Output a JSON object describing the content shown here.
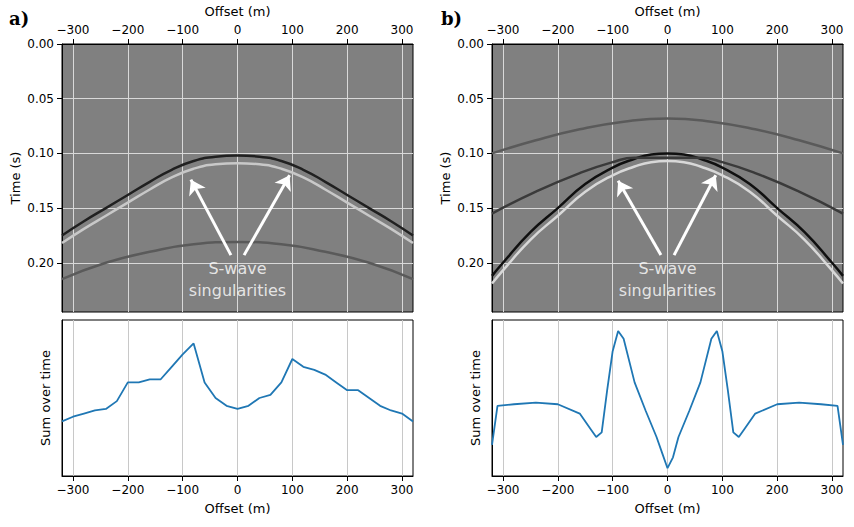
{
  "chart_data": [
    {
      "type": "line",
      "title": "a)",
      "xlabel": "Offset (m)",
      "ylabel": "Time (s)",
      "xlim": [
        -320,
        320
      ],
      "xticks": [
        {
          "value": -300,
          "label": "−300"
        },
        {
          "value": -200,
          "label": "−200"
        },
        {
          "value": -100,
          "label": "−100"
        },
        0,
        100,
        200,
        300
      ],
      "ylim": [
        0.245,
        0
      ],
      "yticks": [
        {
          "value": 0,
          "label": "0.00"
        },
        {
          "value": 0.05,
          "label": "0.05"
        },
        {
          "value": 0.1,
          "label": "0.10"
        },
        {
          "value": 0.15,
          "label": "0.15"
        },
        {
          "value": 0.2,
          "label": "0.20"
        }
      ],
      "grid": true,
      "series": [
        {
          "color": "#202020",
          "x": [
            -320,
            -280,
            -240,
            -200,
            -160,
            -120,
            -80,
            -40,
            0,
            40,
            80,
            120,
            160,
            200,
            240,
            280,
            320
          ],
          "values": [
            0.175,
            0.162,
            0.15,
            0.138,
            0.126,
            0.115,
            0.107,
            0.103,
            0.102,
            0.103,
            0.107,
            0.115,
            0.126,
            0.138,
            0.15,
            0.162,
            0.175
          ]
        },
        {
          "color": "#c8c8c8",
          "x": [
            -320,
            -280,
            -240,
            -200,
            -160,
            -120,
            -80,
            -40,
            0,
            40,
            80,
            120,
            160,
            200,
            240,
            280,
            320
          ],
          "values": [
            0.182,
            0.169,
            0.157,
            0.145,
            0.133,
            0.122,
            0.114,
            0.11,
            0.109,
            0.11,
            0.114,
            0.122,
            0.133,
            0.145,
            0.157,
            0.169,
            0.182
          ]
        },
        {
          "color": "#5a5a5a",
          "x": [
            -320,
            -240,
            -160,
            -80,
            0,
            80,
            160,
            240,
            320
          ],
          "values": [
            0.215,
            0.2,
            0.19,
            0.183,
            0.181,
            0.183,
            0.19,
            0.2,
            0.215
          ]
        }
      ],
      "annotations": [
        {
          "text": "S-wave singularities",
          "x": 0,
          "y": 0.215,
          "arrows": [
            {
              "from": [
                -12,
                0.193
              ],
              "to": [
                -85,
                0.124
              ]
            },
            {
              "from": [
                12,
                0.193
              ],
              "to": [
                95,
                0.12
              ]
            }
          ]
        }
      ]
    },
    {
      "type": "line",
      "xlabel": "Offset (m)",
      "ylabel": "Sum over time",
      "xlim": [
        -320,
        320
      ],
      "xticks": [
        {
          "value": -300,
          "label": "−300"
        },
        {
          "value": -200,
          "label": "−200"
        },
        {
          "value": -100,
          "label": "−100"
        },
        0,
        100,
        200,
        300
      ],
      "ylim": [
        0,
        1
      ],
      "grid": "x",
      "tick_labels": "x",
      "color": "#1f77b4",
      "x": [
        -320,
        -300,
        -280,
        -260,
        -240,
        -220,
        -200,
        -180,
        -160,
        -140,
        -120,
        -100,
        -80,
        -60,
        -40,
        -20,
        0,
        20,
        40,
        60,
        80,
        100,
        120,
        140,
        160,
        180,
        200,
        220,
        240,
        260,
        280,
        300,
        320
      ],
      "values": [
        0.35,
        0.38,
        0.4,
        0.42,
        0.43,
        0.48,
        0.6,
        0.6,
        0.62,
        0.62,
        0.7,
        0.78,
        0.85,
        0.6,
        0.5,
        0.45,
        0.43,
        0.45,
        0.5,
        0.52,
        0.6,
        0.75,
        0.7,
        0.68,
        0.65,
        0.6,
        0.55,
        0.55,
        0.5,
        0.45,
        0.42,
        0.4,
        0.35
      ]
    },
    {
      "type": "line",
      "title": "b)",
      "xlabel": "Offset (m)",
      "ylabel": "Time (s)",
      "xlim": [
        -320,
        320
      ],
      "xticks": [
        {
          "value": -300,
          "label": "−300"
        },
        {
          "value": -200,
          "label": "−200"
        },
        {
          "value": -100,
          "label": "−100"
        },
        0,
        100,
        200,
        300
      ],
      "ylim": [
        0.245,
        0
      ],
      "yticks": [
        {
          "value": 0,
          "label": "0.00"
        },
        {
          "value": 0.05,
          "label": "0.05"
        },
        {
          "value": 0.1,
          "label": "0.10"
        },
        {
          "value": 0.15,
          "label": "0.15"
        },
        {
          "value": 0.2,
          "label": "0.20"
        }
      ],
      "grid": true,
      "series": [
        {
          "color": "#5a5a5a",
          "x": [
            -320,
            -240,
            -160,
            -80,
            0,
            80,
            160,
            240,
            320
          ],
          "values": [
            0.1,
            0.088,
            0.078,
            0.071,
            0.068,
            0.071,
            0.078,
            0.088,
            0.1
          ]
        },
        {
          "color": "#101010",
          "x": [
            -320,
            -300,
            -250,
            -200,
            -150,
            -100,
            -60,
            -30,
            0,
            30,
            60,
            100,
            150,
            200,
            250,
            300,
            320
          ],
          "values": [
            0.212,
            0.2,
            0.172,
            0.15,
            0.128,
            0.113,
            0.105,
            0.101,
            0.1,
            0.101,
            0.105,
            0.113,
            0.128,
            0.15,
            0.172,
            0.2,
            0.212
          ]
        },
        {
          "color": "#d8d8d8",
          "x": [
            -320,
            -300,
            -250,
            -200,
            -150,
            -100,
            -60,
            -30,
            0,
            30,
            60,
            100,
            150,
            200,
            250,
            300,
            320
          ],
          "values": [
            0.219,
            0.207,
            0.179,
            0.157,
            0.135,
            0.12,
            0.112,
            0.108,
            0.107,
            0.108,
            0.112,
            0.12,
            0.135,
            0.157,
            0.179,
            0.207,
            0.219
          ]
        },
        {
          "color": "#3a3a3a",
          "x": [
            -320,
            -240,
            -160,
            -100,
            -60,
            60,
            100,
            160,
            240,
            320
          ],
          "values": [
            0.155,
            0.135,
            0.118,
            0.108,
            0.104,
            0.104,
            0.108,
            0.118,
            0.135,
            0.155
          ]
        }
      ],
      "annotations": [
        {
          "text": "S-wave singularities",
          "x": 0,
          "y": 0.215,
          "arrows": [
            {
              "from": [
                -12,
                0.193
              ],
              "to": [
                -90,
                0.125
              ]
            },
            {
              "from": [
                12,
                0.193
              ],
              "to": [
                88,
                0.12
              ]
            }
          ]
        }
      ]
    },
    {
      "type": "line",
      "xlabel": "Offset (m)",
      "ylabel": "Sum over time",
      "xlim": [
        -320,
        320
      ],
      "xticks": [
        {
          "value": -300,
          "label": "−300"
        },
        {
          "value": -200,
          "label": "−200"
        },
        {
          "value": -100,
          "label": "−100"
        },
        0,
        100,
        200,
        300
      ],
      "ylim": [
        0,
        1
      ],
      "grid": "x",
      "tick_labels": "x",
      "color": "#1f77b4",
      "x": [
        -320,
        -310,
        -280,
        -240,
        -200,
        -160,
        -140,
        -130,
        -120,
        -110,
        -100,
        -90,
        -80,
        -60,
        -40,
        -20,
        -10,
        0,
        10,
        20,
        40,
        60,
        80,
        90,
        100,
        110,
        120,
        130,
        140,
        160,
        200,
        240,
        280,
        310,
        320
      ],
      "values": [
        0.2,
        0.45,
        0.46,
        0.47,
        0.46,
        0.4,
        0.3,
        0.25,
        0.28,
        0.55,
        0.8,
        0.93,
        0.88,
        0.6,
        0.42,
        0.25,
        0.15,
        0.05,
        0.12,
        0.25,
        0.42,
        0.6,
        0.88,
        0.93,
        0.8,
        0.55,
        0.28,
        0.25,
        0.3,
        0.4,
        0.46,
        0.47,
        0.46,
        0.45,
        0.2
      ]
    }
  ]
}
